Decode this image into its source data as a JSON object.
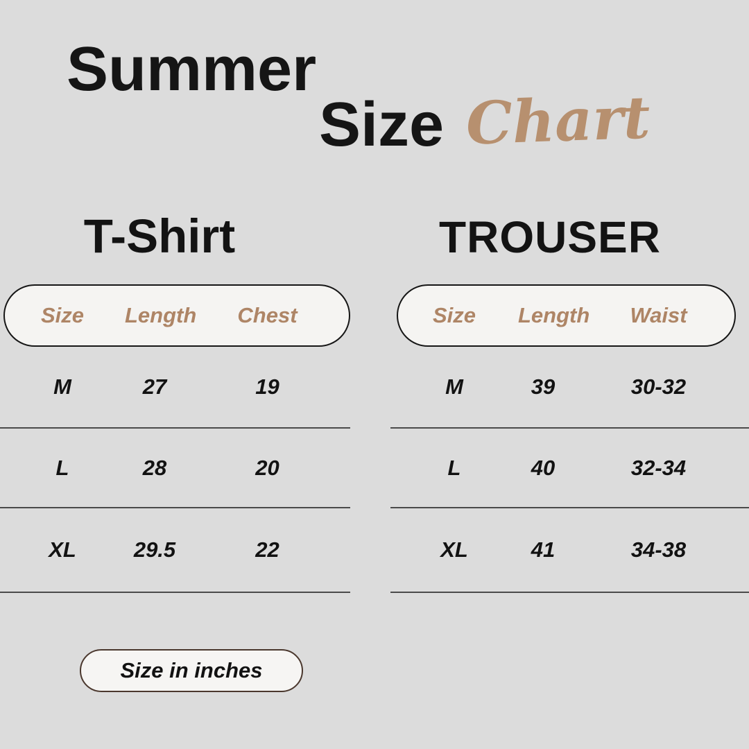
{
  "poster_title": {
    "word1": "Summer",
    "word2": "Size",
    "word3": "Chart"
  },
  "footnote": "Size in inches",
  "colors": {
    "background": "#dcdcdc",
    "heading_text": "#151515",
    "accent_brown_headers": "#ae8566",
    "script_brown": "#b7906f",
    "pill_fill": "#f5f4f2",
    "header_pill_border": "#161616",
    "footnote_pill_border": "#4a372d",
    "row_divider": "#4a4a4a"
  },
  "chart_data": [
    {
      "type": "table",
      "title": "T-Shirt",
      "columns": [
        "Size",
        "Length",
        "Chest"
      ],
      "rows": [
        [
          "M",
          "27",
          "19"
        ],
        [
          "L",
          "28",
          "20"
        ],
        [
          "XL",
          "29.5",
          "22"
        ]
      ],
      "units": "inches"
    },
    {
      "type": "table",
      "title": "TROUSER",
      "columns": [
        "Size",
        "Length",
        "Waist"
      ],
      "rows": [
        [
          "M",
          "39",
          "30-32"
        ],
        [
          "L",
          "40",
          "32-34"
        ],
        [
          "XL",
          "41",
          "34-38"
        ]
      ],
      "units": "inches"
    }
  ]
}
